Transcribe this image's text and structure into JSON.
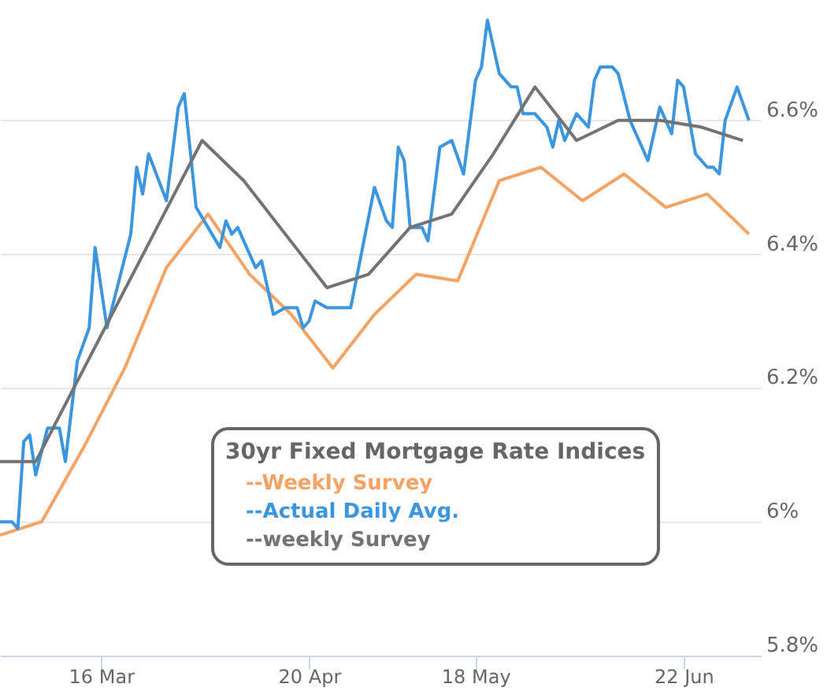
{
  "chart_data": {
    "type": "line",
    "legend_title": "30yr Fixed Mortgage Rate Indices",
    "legend": "bottom",
    "grid": "y",
    "xlim": [
      "--02-27",
      "--07-05"
    ],
    "xticks": [
      {
        "value": "--03-16",
        "label": "16 Mar"
      },
      {
        "value": "--04-20",
        "label": "20 Apr"
      },
      {
        "value": "--05-18",
        "label": "18 May"
      },
      {
        "value": "--06-22",
        "label": "22 Jun"
      }
    ],
    "ylim": [
      5.8,
      6.78
    ],
    "yticks": [
      {
        "value": 5.8,
        "label": "5.8%"
      },
      {
        "value": 6.0,
        "label": "6%"
      },
      {
        "value": 6.2,
        "label": "6.2%"
      },
      {
        "value": 6.4,
        "label": "6.4%"
      },
      {
        "value": 6.6,
        "label": "6.6%"
      }
    ],
    "series": [
      {
        "name": "--Weekly Survey",
        "color": "#f5a262",
        "x": [
          "--02-27",
          "--03-06",
          "--03-13",
          "--03-20",
          "--03-27",
          "--04-03",
          "--04-10",
          "--04-17",
          "--04-24",
          "--05-01",
          "--05-08",
          "--05-15",
          "--05-22",
          "--05-29",
          "--06-05",
          "--06-12",
          "--06-19",
          "--06-26",
          "--07-03"
        ],
        "values": [
          5.98,
          6.0,
          6.11,
          6.23,
          6.38,
          6.46,
          6.37,
          6.31,
          6.23,
          6.31,
          6.37,
          6.36,
          6.51,
          6.53,
          6.48,
          6.52,
          6.47,
          6.49,
          6.43
        ]
      },
      {
        "name": "--Actual Daily Avg.",
        "color": "#3a96e0",
        "x": [
          "--02-27",
          "--03-01",
          "--03-02",
          "--03-03",
          "--03-04",
          "--03-05",
          "--03-07",
          "--03-09",
          "--03-10",
          "--03-12",
          "--03-14",
          "--03-15",
          "--03-17",
          "--03-21",
          "--03-22",
          "--03-23",
          "--03-24",
          "--03-27",
          "--03-29",
          "--03-30",
          "--04-01",
          "--04-05",
          "--04-06",
          "--04-07",
          "--04-08",
          "--04-10",
          "--04-11",
          "--04-12",
          "--04-14",
          "--04-16",
          "--04-18",
          "--04-19",
          "--04-20",
          "--04-21",
          "--04-23",
          "--04-27",
          "--05-01",
          "--05-03",
          "--05-04",
          "--05-05",
          "--05-06",
          "--05-07",
          "--05-09",
          "--05-10",
          "--05-12",
          "--05-14",
          "--05-16",
          "--05-18",
          "--05-19",
          "--05-20",
          "--05-22",
          "--05-24",
          "--05-25",
          "--05-26",
          "--05-28",
          "--05-30",
          "--05-31",
          "--06-01",
          "--06-02",
          "--06-04",
          "--06-06",
          "--06-07",
          "--06-08",
          "--06-10",
          "--06-11",
          "--06-13",
          "--06-16",
          "--06-18",
          "--06-20",
          "--06-21",
          "--06-22",
          "--06-24",
          "--06-26",
          "--06-27",
          "--06-28",
          "--06-29",
          "--07-01",
          "--07-03"
        ],
        "values": [
          6.0,
          6.0,
          5.99,
          6.12,
          6.13,
          6.07,
          6.14,
          6.14,
          6.09,
          6.24,
          6.29,
          6.41,
          6.29,
          6.43,
          6.53,
          6.49,
          6.55,
          6.48,
          6.62,
          6.64,
          6.47,
          6.41,
          6.45,
          6.43,
          6.44,
          6.4,
          6.38,
          6.39,
          6.31,
          6.32,
          6.32,
          6.29,
          6.3,
          6.33,
          6.32,
          6.32,
          6.5,
          6.45,
          6.44,
          6.56,
          6.54,
          6.44,
          6.44,
          6.42,
          6.56,
          6.57,
          6.52,
          6.66,
          6.68,
          6.75,
          6.67,
          6.65,
          6.65,
          6.61,
          6.61,
          6.59,
          6.56,
          6.6,
          6.57,
          6.61,
          6.59,
          6.66,
          6.68,
          6.68,
          6.67,
          6.6,
          6.54,
          6.62,
          6.58,
          6.66,
          6.65,
          6.55,
          6.53,
          6.53,
          6.52,
          6.6,
          6.65,
          6.6
        ]
      },
      {
        "name": "--weekly Survey",
        "color": "#737373",
        "x": [
          "--02-27",
          "--03-05",
          "--03-12",
          "--03-19",
          "--03-26",
          "--04-02",
          "--04-09",
          "--04-16",
          "--04-23",
          "--04-30",
          "--05-07",
          "--05-14",
          "--05-21",
          "--05-28",
          "--06-04",
          "--06-11",
          "--06-18",
          "--06-25",
          "--07-02"
        ],
        "values": [
          6.09,
          6.09,
          6.21,
          6.33,
          6.45,
          6.57,
          6.51,
          6.43,
          6.35,
          6.37,
          6.44,
          6.46,
          6.55,
          6.65,
          6.57,
          6.6,
          6.6,
          6.59,
          6.57
        ]
      }
    ]
  }
}
